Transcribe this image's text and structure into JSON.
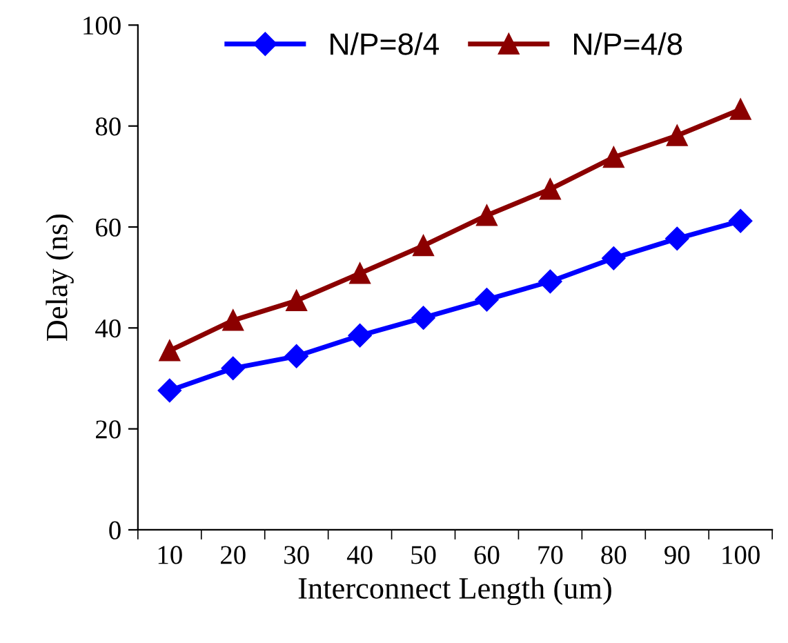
{
  "chart_data": {
    "type": "line",
    "xlabel": "Interconnect Length (um)",
    "ylabel": "Delay (ns)",
    "categories": [
      "10",
      "20",
      "30",
      "40",
      "50",
      "60",
      "70",
      "80",
      "90",
      "100"
    ],
    "series": [
      {
        "name": "N/P=8/4",
        "color": "#0000ff",
        "marker": "diamond",
        "values": [
          27.6,
          32,
          34.4,
          38.5,
          42,
          45.6,
          49.2,
          53.8,
          57.7,
          61.2
        ]
      },
      {
        "name": "N/P=4/8",
        "color": "#8b0000",
        "marker": "triangle",
        "values": [
          35.5,
          41.5,
          45.4,
          50.8,
          56.3,
          62.3,
          67.5,
          73.8,
          78.1,
          83.3
        ]
      }
    ],
    "ylim": [
      0,
      100
    ],
    "yticks": [
      0,
      20,
      40,
      60,
      80,
      100
    ],
    "grid": false,
    "legend": "top",
    "line_style": "solid"
  }
}
